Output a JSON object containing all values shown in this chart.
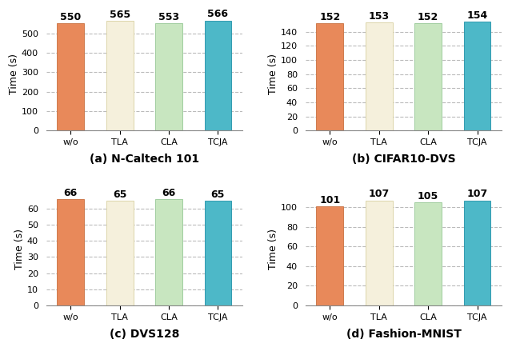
{
  "subplots": [
    {
      "title": "(a) N-Caltech 101",
      "categories": [
        "w/o",
        "TLA",
        "CLA",
        "TCJA"
      ],
      "values": [
        550,
        565,
        553,
        566
      ],
      "ylim": [
        0,
        580
      ],
      "yticks": [
        0,
        100,
        200,
        300,
        400,
        500
      ]
    },
    {
      "title": "(b) CIFAR10-DVS",
      "categories": [
        "w/o",
        "TLA",
        "CLA",
        "TCJA"
      ],
      "values": [
        152,
        153,
        152,
        154
      ],
      "ylim": [
        0,
        160
      ],
      "yticks": [
        0,
        20,
        40,
        60,
        80,
        100,
        120,
        140
      ]
    },
    {
      "title": "(c) DVS128",
      "categories": [
        "w/o",
        "TLA",
        "CLA",
        "TCJA"
      ],
      "values": [
        66,
        65,
        66,
        65
      ],
      "ylim": [
        0,
        70
      ],
      "yticks": [
        0,
        10,
        20,
        30,
        40,
        50,
        60
      ]
    },
    {
      "title": "(d) Fashion-MNIST",
      "categories": [
        "w/o",
        "TLA",
        "CLA",
        "TCJA"
      ],
      "values": [
        101,
        107,
        105,
        107
      ],
      "ylim": [
        0,
        115
      ],
      "yticks": [
        0,
        20,
        40,
        60,
        80,
        100
      ]
    }
  ],
  "bar_colors": [
    "#E8895A",
    "#F5F0DC",
    "#C8E6C0",
    "#4DB8C8"
  ],
  "bar_edge_colors": [
    "#C87040",
    "#D8D0A0",
    "#96C896",
    "#2090A8"
  ],
  "ylabel": "Time (s)",
  "label_fontsize": 9,
  "tick_fontsize": 8,
  "title_fontsize": 10,
  "value_fontsize": 9,
  "background_color": "#FFFFFF",
  "grid_color": "#BBBBBB"
}
